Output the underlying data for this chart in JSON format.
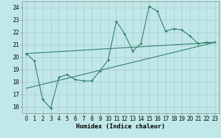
{
  "title": "",
  "xlabel": "Humidex (Indice chaleur)",
  "bg_color": "#c0e8e8",
  "grid_color": "#b0cccc",
  "line_color": "#2d7a6a",
  "xlim": [
    -0.5,
    23.5
  ],
  "ylim": [
    15.5,
    24.5
  ],
  "xticks": [
    0,
    1,
    2,
    3,
    4,
    5,
    6,
    7,
    8,
    9,
    10,
    11,
    12,
    13,
    14,
    15,
    16,
    17,
    18,
    19,
    20,
    21,
    22,
    23
  ],
  "yticks": [
    16,
    17,
    18,
    19,
    20,
    21,
    22,
    23,
    24
  ],
  "line1_x": [
    0,
    1,
    2,
    3,
    4,
    5,
    6,
    7,
    8,
    9,
    10,
    11,
    12,
    13,
    14,
    15,
    16,
    17,
    18,
    19,
    20,
    21,
    22,
    23
  ],
  "line1_y": [
    20.3,
    19.7,
    16.6,
    15.9,
    18.4,
    18.6,
    18.2,
    18.1,
    18.1,
    18.9,
    19.8,
    22.9,
    21.9,
    20.5,
    21.1,
    24.1,
    23.7,
    22.1,
    22.3,
    22.2,
    21.7,
    21.1,
    21.2,
    21.2
  ],
  "line2_x": [
    0,
    23
  ],
  "line2_y": [
    20.3,
    21.2
  ],
  "line3_x": [
    0,
    23
  ],
  "line3_y": [
    17.5,
    21.2
  ],
  "marker_size": 2.5,
  "tick_fontsize": 5.5,
  "xlabel_fontsize": 6.5
}
